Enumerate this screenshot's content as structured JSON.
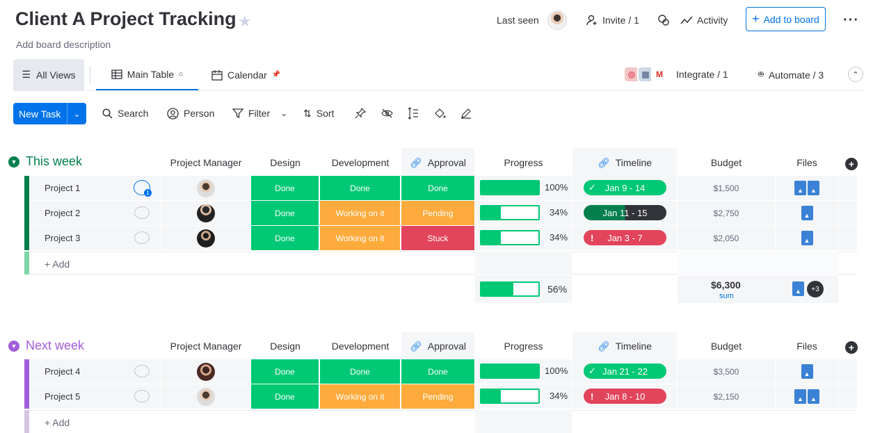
{
  "header": {
    "title": "Client A Project Tracking",
    "description": "Add board description",
    "last_seen": "Last seen",
    "invite": "Invite / 1",
    "activity": "Activity",
    "add_to_board": "Add to board"
  },
  "views": {
    "all_views": "All Views",
    "main_table": "Main Table",
    "calendar": "Calendar",
    "integrate": "Integrate / 1",
    "automate": "Automate / 3"
  },
  "toolbar": {
    "new_task": "New Task",
    "search": "Search",
    "person": "Person",
    "filter": "Filter",
    "sort": "Sort"
  },
  "columns": {
    "pm": "Project Manager",
    "design": "Design",
    "development": "Development",
    "approval": "Approval",
    "progress": "Progress",
    "timeline": "Timeline",
    "budget": "Budget",
    "files": "Files"
  },
  "groups": [
    {
      "title": "This week",
      "color": "#037f4c",
      "add_label": "+ Add",
      "rows": [
        {
          "name": "Project 1",
          "design": "Done",
          "development": "Done",
          "approval": "Done",
          "progress": "100%",
          "progress_value": 1.0,
          "timeline": "Jan 9 - 14",
          "budget": "$1,500"
        },
        {
          "name": "Project 2",
          "design": "Done",
          "development": "Working on it",
          "approval": "Pending",
          "progress": "34%",
          "progress_value": 0.34,
          "timeline": "Jan 11 - 15",
          "budget": "$2,750"
        },
        {
          "name": "Project 3",
          "design": "Done",
          "development": "Working on it",
          "approval": "Stuck",
          "progress": "34%",
          "progress_value": 0.34,
          "timeline": "Jan 3 - 7",
          "budget": "$2,050"
        }
      ],
      "summary": {
        "progress": "56%",
        "progress_value": 0.56,
        "budget": "$6,300",
        "budget_label": "sum",
        "files_more": "+3"
      }
    },
    {
      "title": "Next week",
      "color": "#a25ddc",
      "add_label": "+ Add",
      "rows": [
        {
          "name": "Project 4",
          "design": "Done",
          "development": "Done",
          "approval": "Done",
          "progress": "100%",
          "progress_value": 1.0,
          "timeline": "Jan 21 - 22",
          "budget": "$3,500"
        },
        {
          "name": "Project 5",
          "design": "Done",
          "development": "Working on it",
          "approval": "Pending",
          "progress": "34%",
          "progress_value": 0.34,
          "timeline": "Jan 8 - 10",
          "budget": "$2,150"
        }
      ]
    }
  ],
  "colors": {
    "done": "#00c875",
    "working": "#fdab3d",
    "stuck": "#e2445c",
    "accent": "#0073ea"
  }
}
